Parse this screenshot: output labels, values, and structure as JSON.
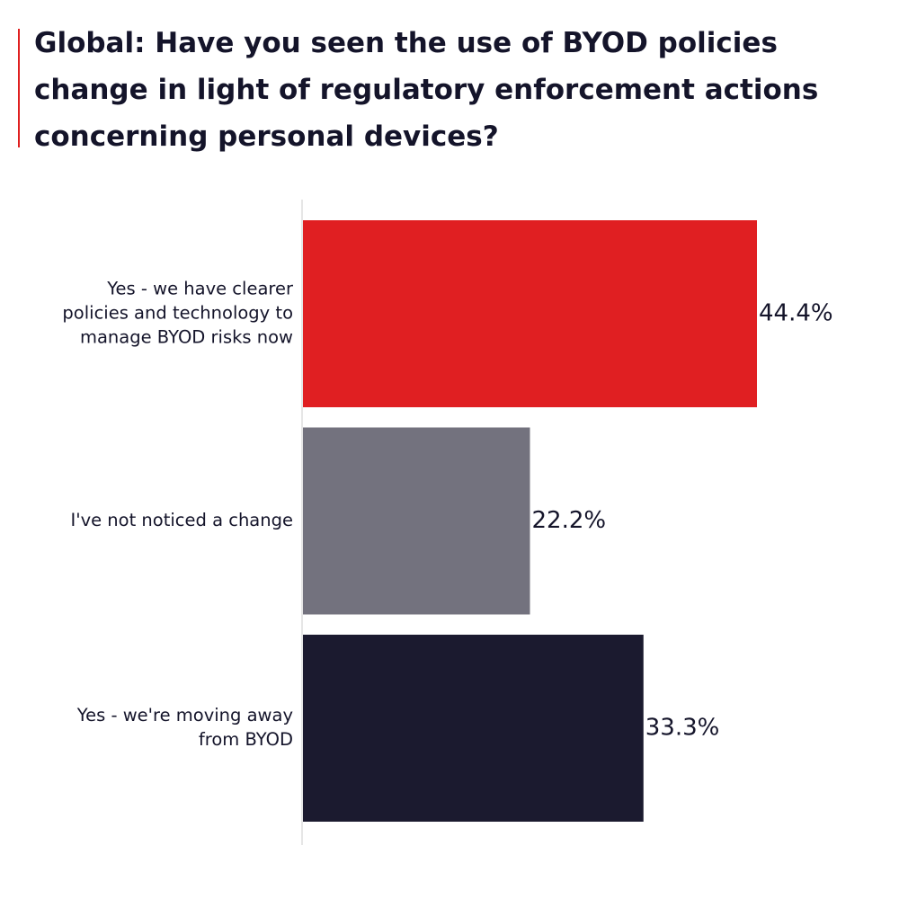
{
  "chart_data": {
    "type": "bar",
    "orientation": "horizontal",
    "title": "Global: Have you seen the use of BYOD policies change in light of regulatory enforcement actions concerning personal devices?",
    "categories": [
      "Yes - we have clearer policies and technology to manage BYOD risks now",
      "I've not noticed a change",
      "Yes - we're moving away from BYOD"
    ],
    "category_lines": [
      [
        "Yes - we have clearer",
        "policies and technology to",
        "manage BYOD risks now"
      ],
      [
        "I've not noticed a change"
      ],
      [
        "Yes - we're moving away",
        "from BYOD"
      ]
    ],
    "values": [
      44.4,
      22.2,
      33.3
    ],
    "value_labels": [
      "44.4%",
      "22.2%",
      "33.3%"
    ],
    "colors": [
      "#e01f22",
      "#73727e",
      "#1b1a2f"
    ],
    "xlim": [
      0,
      44.4
    ],
    "grid": false,
    "legend": "none"
  }
}
